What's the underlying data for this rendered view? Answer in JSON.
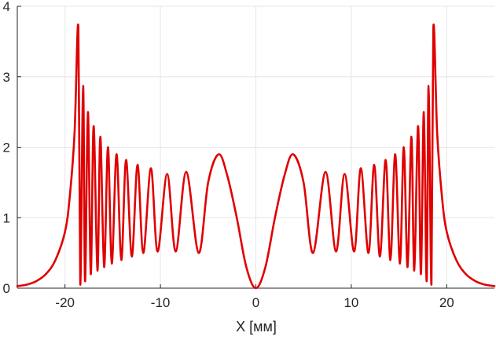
{
  "chart_data": {
    "type": "line",
    "title": "",
    "xlabel": "X [мм]",
    "ylabel": "",
    "xlim": [
      -25,
      25
    ],
    "ylim": [
      0,
      4
    ],
    "xticks": [
      -20,
      -10,
      0,
      10,
      20
    ],
    "yticks": [
      0,
      1,
      2,
      3,
      4
    ],
    "xtick_labels": [
      "-20",
      "-10",
      "0",
      "10",
      "20"
    ],
    "ytick_labels": [
      "0",
      "1",
      "2",
      "3",
      "4"
    ],
    "grid": true,
    "series": [
      {
        "color": "#e00000",
        "x": [
          0,
          1,
          2,
          3,
          3.9,
          5,
          6,
          7.3,
          8.4,
          9.3,
          10.3,
          11.0,
          11.8,
          12.4,
          13.0,
          13.6,
          14.1,
          14.6,
          15.1,
          15.5,
          15.9,
          16.3,
          16.6,
          17.0,
          17.3,
          17.6,
          17.9,
          18.1,
          18.4,
          18.6,
          19.0,
          19.5,
          20,
          21,
          22,
          23,
          24,
          25
        ],
        "y": [
          0.0,
          0.3,
          1.0,
          1.6,
          1.9,
          1.5,
          0.5,
          1.65,
          0.52,
          1.62,
          0.52,
          1.7,
          0.5,
          1.75,
          0.45,
          1.82,
          0.4,
          1.9,
          0.35,
          2.0,
          0.3,
          2.15,
          0.25,
          2.3,
          0.2,
          2.5,
          0.1,
          2.87,
          0.05,
          3.7,
          2.2,
          1.3,
          0.8,
          0.4,
          0.2,
          0.1,
          0.05,
          0.03
        ],
        "symmetric_about_x0": true
      }
    ]
  }
}
